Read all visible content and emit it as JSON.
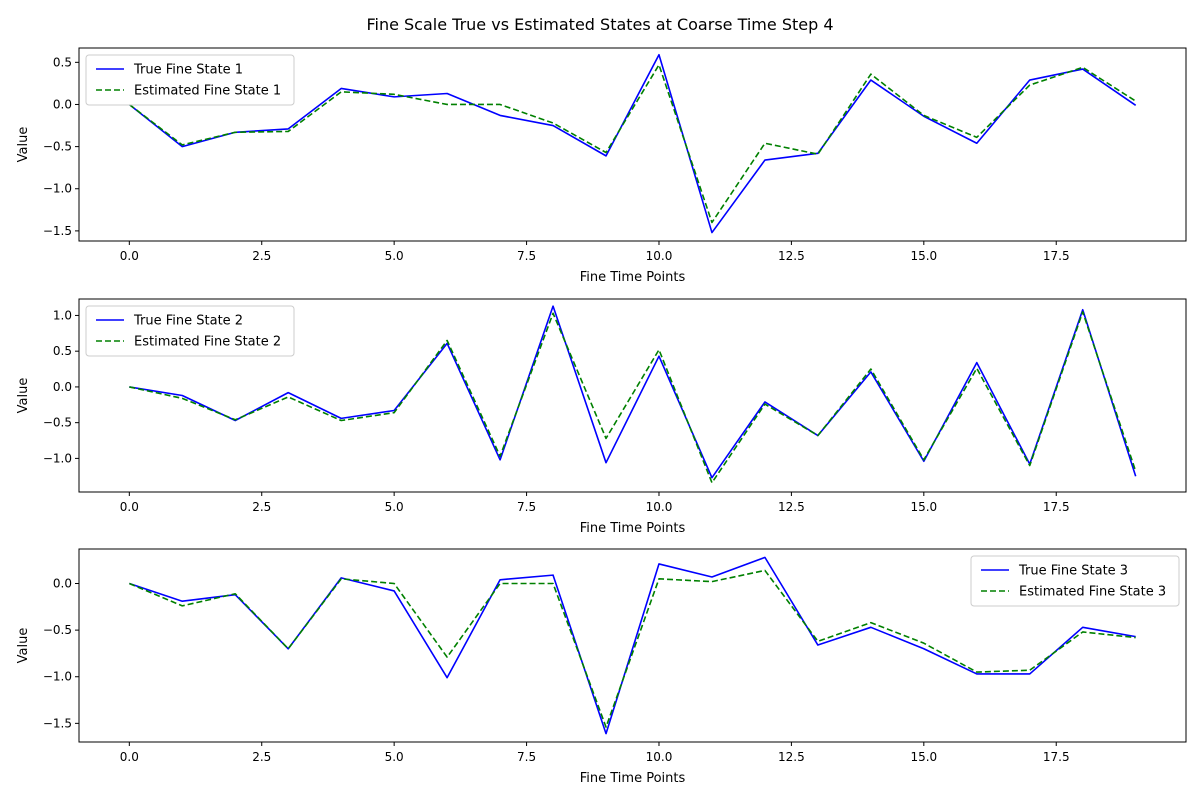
{
  "figure": {
    "suptitle": "Fine Scale True vs Estimated States at Coarse Time Step 4"
  },
  "chart_data": [
    {
      "type": "line",
      "title": "",
      "xlabel": "Fine Time Points",
      "ylabel": "Value",
      "xlim": [
        -0.95,
        19.95
      ],
      "ylim": [
        -1.62,
        0.67
      ],
      "xticks": [
        0.0,
        2.5,
        5.0,
        7.5,
        10.0,
        12.5,
        15.0,
        17.5
      ],
      "xtick_labels": [
        "0.0",
        "2.5",
        "5.0",
        "7.5",
        "10.0",
        "12.5",
        "15.0",
        "17.5"
      ],
      "yticks": [
        0.5,
        0.0,
        -0.5,
        -1.0,
        -1.5
      ],
      "ytick_labels": [
        "0.5",
        "0.0",
        "−0.5",
        "−1.0",
        "−1.5"
      ],
      "legend_position": "upper-left",
      "grid": false,
      "x": [
        0,
        1,
        2,
        3,
        4,
        5,
        6,
        7,
        8,
        9,
        10,
        11,
        12,
        13,
        14,
        15,
        16,
        17,
        18,
        19
      ],
      "series": [
        {
          "name": "True Fine State 1",
          "color": "#0000ff",
          "style": "solid",
          "values": [
            0.0,
            -0.5,
            -0.33,
            -0.29,
            0.19,
            0.09,
            0.13,
            -0.13,
            -0.25,
            -0.61,
            0.59,
            -1.52,
            -0.66,
            -0.58,
            0.29,
            -0.14,
            -0.46,
            0.29,
            0.42,
            -0.01
          ]
        },
        {
          "name": "Estimated Fine State 1",
          "color": "#008000",
          "style": "dashed",
          "values": [
            0.0,
            -0.48,
            -0.33,
            -0.32,
            0.15,
            0.12,
            0.0,
            0.0,
            -0.22,
            -0.57,
            0.47,
            -1.4,
            -0.46,
            -0.59,
            0.36,
            -0.13,
            -0.39,
            0.23,
            0.44,
            0.04
          ]
        }
      ]
    },
    {
      "type": "line",
      "title": "",
      "xlabel": "Fine Time Points",
      "ylabel": "Value",
      "xlim": [
        -0.95,
        19.95
      ],
      "ylim": [
        -1.47,
        1.23
      ],
      "xticks": [
        0.0,
        2.5,
        5.0,
        7.5,
        10.0,
        12.5,
        15.0,
        17.5
      ],
      "xtick_labels": [
        "0.0",
        "2.5",
        "5.0",
        "7.5",
        "10.0",
        "12.5",
        "15.0",
        "17.5"
      ],
      "yticks": [
        1.0,
        0.5,
        0.0,
        -0.5,
        -1.0
      ],
      "ytick_labels": [
        "1.0",
        "0.5",
        "0.0",
        "−0.5",
        "−1.0"
      ],
      "legend_position": "upper-left",
      "grid": false,
      "x": [
        0,
        1,
        2,
        3,
        4,
        5,
        6,
        7,
        8,
        9,
        10,
        11,
        12,
        13,
        14,
        15,
        16,
        17,
        18,
        19
      ],
      "series": [
        {
          "name": "True Fine State 2",
          "color": "#0000ff",
          "style": "solid",
          "values": [
            0.0,
            -0.12,
            -0.47,
            -0.08,
            -0.44,
            -0.33,
            0.61,
            -1.02,
            1.13,
            -1.06,
            0.43,
            -1.27,
            -0.21,
            -0.68,
            0.21,
            -1.04,
            0.34,
            -1.08,
            1.08,
            -1.25
          ]
        },
        {
          "name": "Estimated Fine State 2",
          "color": "#008000",
          "style": "dashed",
          "values": [
            0.0,
            -0.16,
            -0.46,
            -0.14,
            -0.47,
            -0.36,
            0.65,
            -0.97,
            1.03,
            -0.72,
            0.52,
            -1.34,
            -0.24,
            -0.68,
            0.25,
            -1.02,
            0.26,
            -1.1,
            1.05,
            -1.18
          ]
        }
      ]
    },
    {
      "type": "line",
      "title": "",
      "xlabel": "Fine Time Points",
      "ylabel": "Value",
      "xlim": [
        -0.95,
        19.95
      ],
      "ylim": [
        -1.7,
        0.37
      ],
      "xticks": [
        0.0,
        2.5,
        5.0,
        7.5,
        10.0,
        12.5,
        15.0,
        17.5
      ],
      "xtick_labels": [
        "0.0",
        "2.5",
        "5.0",
        "7.5",
        "10.0",
        "12.5",
        "15.0",
        "17.5"
      ],
      "yticks": [
        0.0,
        -0.5,
        -1.0,
        -1.5
      ],
      "ytick_labels": [
        "0.0",
        "−0.5",
        "−1.0",
        "−1.5"
      ],
      "legend_position": "upper-right",
      "grid": false,
      "x": [
        0,
        1,
        2,
        3,
        4,
        5,
        6,
        7,
        8,
        9,
        10,
        11,
        12,
        13,
        14,
        15,
        16,
        17,
        18,
        19
      ],
      "series": [
        {
          "name": "True Fine State 3",
          "color": "#0000ff",
          "style": "solid",
          "values": [
            0.0,
            -0.19,
            -0.12,
            -0.7,
            0.06,
            -0.08,
            -1.01,
            0.04,
            0.09,
            -1.61,
            0.21,
            0.07,
            0.28,
            -0.66,
            -0.47,
            -0.7,
            -0.97,
            -0.97,
            -0.47,
            -0.57
          ]
        },
        {
          "name": "Estimated Fine State 3",
          "color": "#008000",
          "style": "dashed",
          "values": [
            0.0,
            -0.24,
            -0.11,
            -0.7,
            0.05,
            0.0,
            -0.79,
            0.0,
            0.0,
            -1.54,
            0.05,
            0.02,
            0.14,
            -0.62,
            -0.42,
            -0.64,
            -0.95,
            -0.93,
            -0.52,
            -0.58
          ]
        }
      ]
    }
  ]
}
